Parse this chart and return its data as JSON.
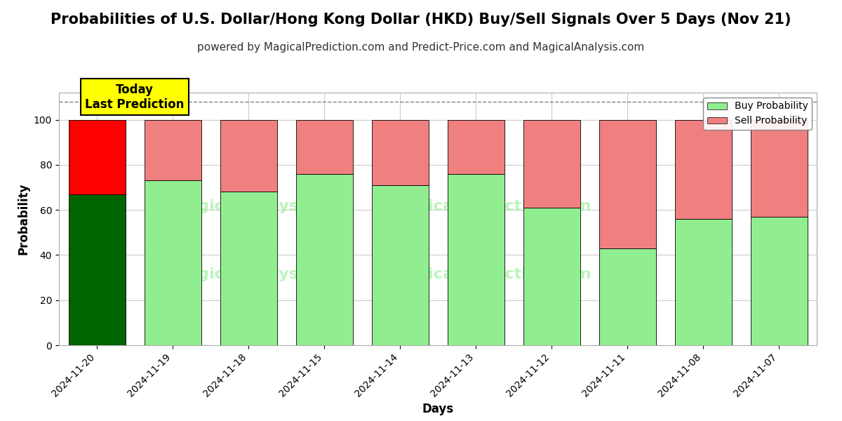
{
  "title": "Probabilities of U.S. Dollar/Hong Kong Dollar (HKD) Buy/Sell Signals Over 5 Days (Nov 21)",
  "subtitle": "powered by MagicalPrediction.com and Predict-Price.com and MagicalAnalysis.com",
  "xlabel": "Days",
  "ylabel": "Probability",
  "categories": [
    "2024-11-20",
    "2024-11-19",
    "2024-11-18",
    "2024-11-15",
    "2024-11-14",
    "2024-11-13",
    "2024-11-12",
    "2024-11-11",
    "2024-11-08",
    "2024-11-07"
  ],
  "buy_values": [
    67,
    73,
    68,
    76,
    71,
    76,
    61,
    43,
    56,
    57
  ],
  "sell_values": [
    33,
    27,
    32,
    24,
    29,
    24,
    39,
    57,
    44,
    43
  ],
  "today_buy_color": "#006400",
  "today_sell_color": "#FF0000",
  "buy_color": "#90EE90",
  "sell_color": "#F08080",
  "today_annotation": "Today\nLast Prediction",
  "annotation_bg_color": "#FFFF00",
  "ylim": [
    0,
    112
  ],
  "yticks": [
    0,
    20,
    40,
    60,
    80,
    100
  ],
  "dashed_line_y": 108,
  "legend_buy_label": "Buy Probability",
  "legend_sell_label": "Sell Probability",
  "background_color": "#ffffff",
  "grid_color": "#cccccc",
  "title_fontsize": 15,
  "subtitle_fontsize": 11
}
